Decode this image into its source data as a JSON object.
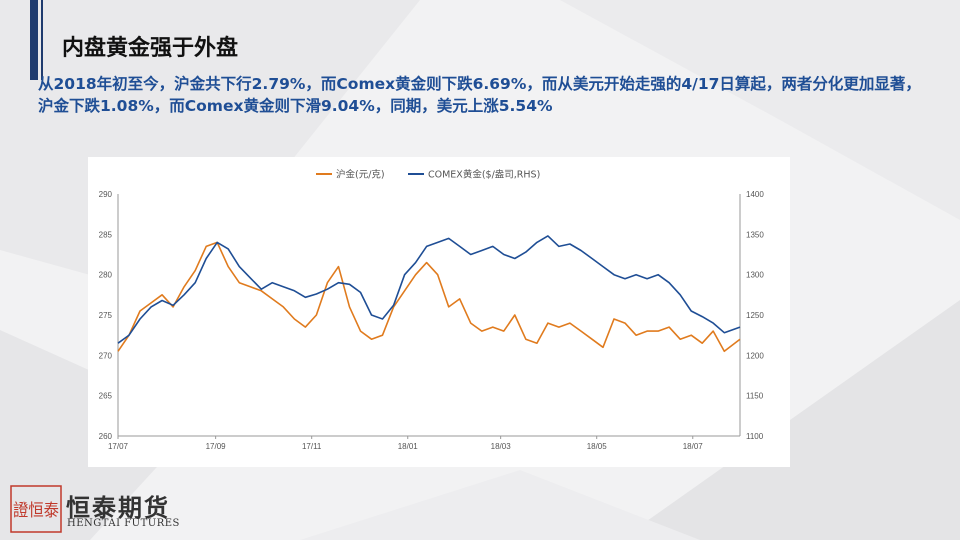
{
  "slide": {
    "title": "内盘黄金强于外盘",
    "subtitle": "从2018年初至今，沪金共下行2.79%，而Comex黄金则下跌6.69%，而从美元开始走强的4/17日算起，两者分化更加显著，沪金下跌1.08%，而Comex黄金则下滑9.04%，同期，美元上涨5.54%"
  },
  "brand": {
    "name_cn": "恒泰期货",
    "name_en": "HENGTAI FUTURES",
    "logo_text": "證恒泰"
  },
  "colors": {
    "accent": "#1f3b6e",
    "subtitle": "#1f4e95",
    "series_left": "#e07b1e",
    "series_right": "#1f4e95",
    "logo_red": "#c0392b"
  },
  "chart_data": {
    "type": "line",
    "title": "",
    "legend_position": "top-center",
    "x_ticks": [
      "17/07",
      "17/09",
      "17/11",
      "18/01",
      "18/03",
      "18/05",
      "18/07"
    ],
    "x_range": [
      "2017-07-01",
      "2018-07-31"
    ],
    "y_left": {
      "range": [
        260,
        290
      ],
      "ticks": [
        260,
        265,
        270,
        275,
        280,
        285,
        290
      ]
    },
    "y_right": {
      "range": [
        1100,
        1400
      ],
      "ticks": [
        1100,
        1150,
        1200,
        1250,
        1300,
        1350,
        1400
      ]
    },
    "grid": false,
    "series": [
      {
        "name": "沪金(元/克)",
        "axis": "left",
        "x": [
          "2017-07-01",
          "2017-07-08",
          "2017-07-15",
          "2017-07-22",
          "2017-07-29",
          "2017-08-05",
          "2017-08-12",
          "2017-08-19",
          "2017-08-26",
          "2017-09-02",
          "2017-09-09",
          "2017-09-16",
          "2017-09-23",
          "2017-09-30",
          "2017-10-07",
          "2017-10-14",
          "2017-10-21",
          "2017-10-28",
          "2017-11-04",
          "2017-11-11",
          "2017-11-18",
          "2017-11-25",
          "2017-12-02",
          "2017-12-09",
          "2017-12-16",
          "2017-12-23",
          "2017-12-30",
          "2018-01-06",
          "2018-01-13",
          "2018-01-20",
          "2018-01-27",
          "2018-02-03",
          "2018-02-10",
          "2018-02-17",
          "2018-02-24",
          "2018-03-03",
          "2018-03-10",
          "2018-03-17",
          "2018-03-24",
          "2018-03-31",
          "2018-04-07",
          "2018-04-14",
          "2018-04-21",
          "2018-04-28",
          "2018-05-05",
          "2018-05-12",
          "2018-05-19",
          "2018-05-26",
          "2018-06-02",
          "2018-06-09",
          "2018-06-16",
          "2018-06-23",
          "2018-06-30",
          "2018-07-07",
          "2018-07-14",
          "2018-07-21",
          "2018-07-31"
        ],
        "values": [
          270.5,
          272.5,
          275.5,
          276.5,
          277.5,
          276,
          278.5,
          280.5,
          283.5,
          284,
          281,
          279,
          278.5,
          278,
          277,
          276,
          274.5,
          273.5,
          275,
          279,
          281,
          276,
          273,
          272,
          272.5,
          276,
          278,
          280,
          281.5,
          280,
          276,
          277,
          274,
          273,
          273.5,
          273,
          275,
          272,
          271.5,
          274,
          273.5,
          274,
          273,
          272,
          271,
          274.5,
          274,
          272.5,
          273,
          273,
          273.5,
          272,
          272.5,
          271.5,
          273,
          270.5,
          272
        ]
      },
      {
        "name": "COMEX黄金($/盎司,RHS)",
        "axis": "right",
        "x": [
          "2017-07-01",
          "2017-07-08",
          "2017-07-15",
          "2017-07-22",
          "2017-07-29",
          "2017-08-05",
          "2017-08-12",
          "2017-08-19",
          "2017-08-26",
          "2017-09-02",
          "2017-09-09",
          "2017-09-16",
          "2017-09-23",
          "2017-09-30",
          "2017-10-07",
          "2017-10-14",
          "2017-10-21",
          "2017-10-28",
          "2017-11-04",
          "2017-11-11",
          "2017-11-18",
          "2017-11-25",
          "2017-12-02",
          "2017-12-09",
          "2017-12-16",
          "2017-12-23",
          "2017-12-30",
          "2018-01-06",
          "2018-01-13",
          "2018-01-20",
          "2018-01-27",
          "2018-02-03",
          "2018-02-10",
          "2018-02-17",
          "2018-02-24",
          "2018-03-03",
          "2018-03-10",
          "2018-03-17",
          "2018-03-24",
          "2018-03-31",
          "2018-04-07",
          "2018-04-14",
          "2018-04-21",
          "2018-04-28",
          "2018-05-05",
          "2018-05-12",
          "2018-05-19",
          "2018-05-26",
          "2018-06-02",
          "2018-06-09",
          "2018-06-16",
          "2018-06-23",
          "2018-06-30",
          "2018-07-07",
          "2018-07-14",
          "2018-07-21",
          "2018-07-31"
        ],
        "values": [
          1215,
          1225,
          1245,
          1260,
          1268,
          1262,
          1275,
          1290,
          1320,
          1340,
          1332,
          1310,
          1296,
          1282,
          1290,
          1285,
          1280,
          1272,
          1276,
          1282,
          1290,
          1288,
          1278,
          1250,
          1245,
          1262,
          1300,
          1315,
          1335,
          1340,
          1345,
          1335,
          1325,
          1330,
          1335,
          1325,
          1320,
          1328,
          1340,
          1348,
          1335,
          1338,
          1330,
          1320,
          1310,
          1300,
          1295,
          1300,
          1295,
          1300,
          1290,
          1275,
          1255,
          1248,
          1240,
          1228,
          1235
        ]
      }
    ]
  }
}
